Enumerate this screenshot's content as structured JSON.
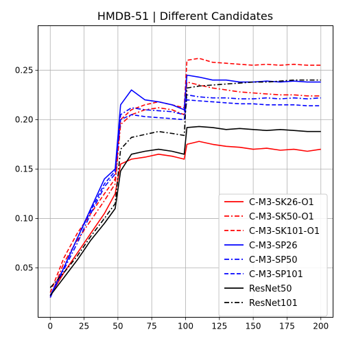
{
  "chart_data": {
    "type": "line",
    "title": "HMDB-51 | Different Candidates",
    "xlabel": "",
    "ylabel": "",
    "xlim": [
      -9,
      209
    ],
    "ylim": [
      0.0,
      0.295
    ],
    "xticks": [
      0,
      25,
      50,
      75,
      100,
      125,
      150,
      175,
      200
    ],
    "xtick_labels": [
      "0",
      "25",
      "50",
      "75",
      "100",
      "125",
      "150",
      "175",
      "200"
    ],
    "yticks": [
      0.05,
      0.1,
      0.15,
      0.2,
      0.25
    ],
    "ytick_labels": [
      "0.05",
      "0.10",
      "0.15",
      "0.20",
      "0.25"
    ],
    "grid": true,
    "legend_position": "lower-right",
    "x": [
      0,
      10,
      20,
      30,
      40,
      48,
      52,
      60,
      70,
      80,
      90,
      99,
      101,
      110,
      120,
      130,
      140,
      150,
      160,
      170,
      180,
      190,
      200
    ],
    "series": [
      {
        "name": "C-M3-SK26-O1",
        "color": "#ff0000",
        "dash": "solid",
        "values": [
          0.022,
          0.045,
          0.065,
          0.085,
          0.105,
          0.125,
          0.155,
          0.16,
          0.162,
          0.165,
          0.163,
          0.16,
          0.175,
          0.178,
          0.175,
          0.173,
          0.172,
          0.17,
          0.171,
          0.169,
          0.17,
          0.168,
          0.17
        ]
      },
      {
        "name": "C-M3-SK50-O1",
        "color": "#ff0000",
        "dash": "dashdot",
        "values": [
          0.02,
          0.055,
          0.078,
          0.098,
          0.118,
          0.135,
          0.195,
          0.205,
          0.21,
          0.212,
          0.21,
          0.205,
          0.238,
          0.235,
          0.232,
          0.23,
          0.228,
          0.227,
          0.226,
          0.225,
          0.225,
          0.224,
          0.224
        ]
      },
      {
        "name": "C-M3-SK101-O1",
        "color": "#ff0000",
        "dash": "dashed",
        "values": [
          0.025,
          0.06,
          0.085,
          0.105,
          0.125,
          0.14,
          0.2,
          0.21,
          0.215,
          0.218,
          0.215,
          0.212,
          0.26,
          0.262,
          0.258,
          0.257,
          0.256,
          0.255,
          0.256,
          0.255,
          0.256,
          0.255,
          0.255
        ]
      },
      {
        "name": "C-M3-SP26",
        "color": "#0000ff",
        "dash": "solid",
        "values": [
          0.022,
          0.05,
          0.08,
          0.11,
          0.14,
          0.15,
          0.215,
          0.23,
          0.22,
          0.218,
          0.215,
          0.21,
          0.245,
          0.243,
          0.24,
          0.24,
          0.238,
          0.238,
          0.239,
          0.238,
          0.239,
          0.238,
          0.238
        ]
      },
      {
        "name": "C-M3-SP50",
        "color": "#0000ff",
        "dash": "dashdot",
        "values": [
          0.021,
          0.048,
          0.075,
          0.105,
          0.132,
          0.145,
          0.205,
          0.212,
          0.21,
          0.209,
          0.208,
          0.205,
          0.225,
          0.223,
          0.222,
          0.222,
          0.221,
          0.221,
          0.222,
          0.221,
          0.222,
          0.221,
          0.222
        ]
      },
      {
        "name": "C-M3-SP101",
        "color": "#0000ff",
        "dash": "dashed",
        "values": [
          0.02,
          0.05,
          0.08,
          0.108,
          0.135,
          0.148,
          0.2,
          0.205,
          0.203,
          0.202,
          0.201,
          0.2,
          0.22,
          0.219,
          0.218,
          0.217,
          0.216,
          0.216,
          0.215,
          0.215,
          0.215,
          0.214,
          0.214
        ]
      },
      {
        "name": "ResNet50",
        "color": "#000000",
        "dash": "solid",
        "values": [
          0.022,
          0.04,
          0.058,
          0.078,
          0.095,
          0.11,
          0.148,
          0.165,
          0.168,
          0.17,
          0.168,
          0.165,
          0.192,
          0.193,
          0.192,
          0.19,
          0.191,
          0.19,
          0.189,
          0.19,
          0.189,
          0.188,
          0.188
        ]
      },
      {
        "name": "ResNet101",
        "color": "#000000",
        "dash": "dashdot",
        "values": [
          0.03,
          0.045,
          0.062,
          0.082,
          0.1,
          0.115,
          0.17,
          0.182,
          0.185,
          0.188,
          0.186,
          0.184,
          0.232,
          0.234,
          0.235,
          0.236,
          0.237,
          0.238,
          0.238,
          0.239,
          0.24,
          0.24,
          0.24
        ]
      }
    ]
  }
}
